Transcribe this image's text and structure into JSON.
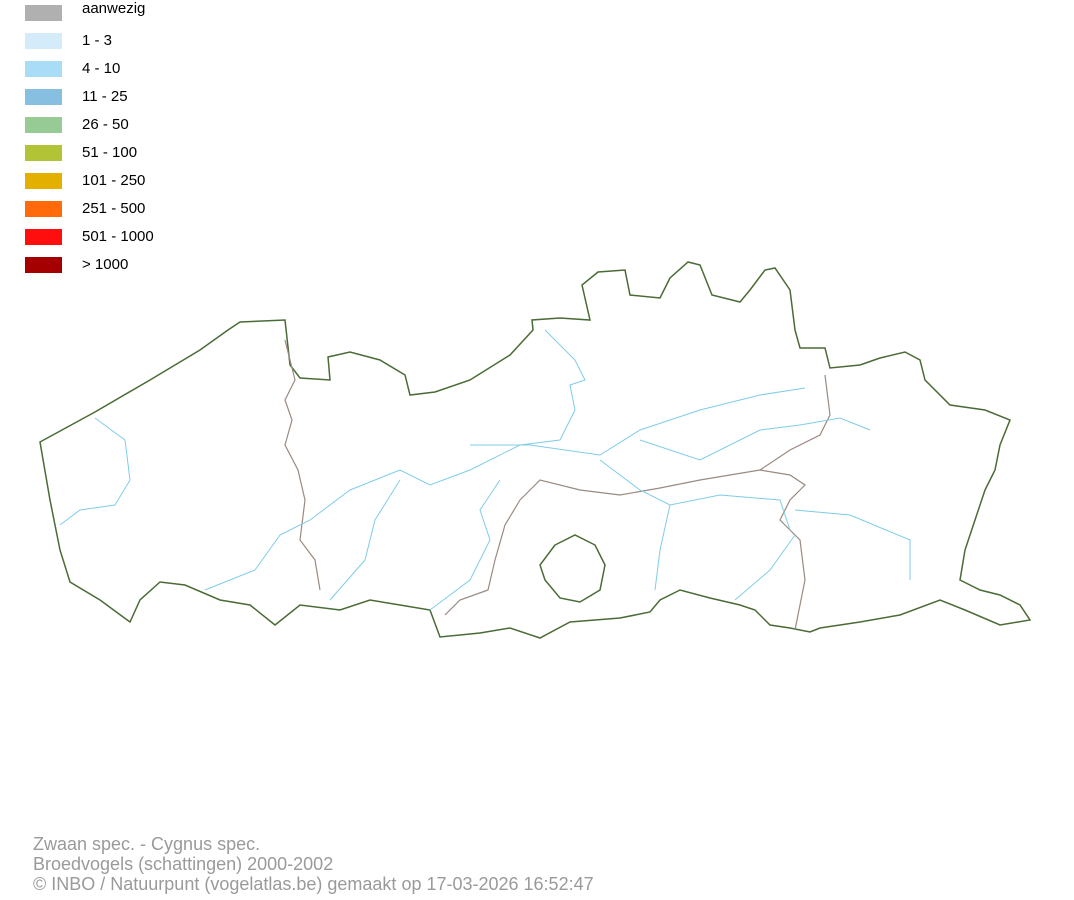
{
  "legend": [
    {
      "label": "aanwezig",
      "color": "#b0b0b0"
    },
    {
      "label": "1 - 3",
      "color": "#d4ebfa"
    },
    {
      "label": "4 - 10",
      "color": "#a9dcf7"
    },
    {
      "label": "11 - 25",
      "color": "#86bfe0"
    },
    {
      "label": "26 - 50",
      "color": "#97cb96"
    },
    {
      "label": "51 - 100",
      "color": "#b2c336"
    },
    {
      "label": "101 - 250",
      "color": "#e3b000"
    },
    {
      "label": "251 - 500",
      "color": "#ff6a0b"
    },
    {
      "label": "501 - 1000",
      "color": "#ff0e0e"
    },
    {
      "label": "> 1000",
      "color": "#a50000"
    }
  ],
  "footer": {
    "species": "Zwaan spec. - Cygnus spec.",
    "dataset": "Broedvogels (schattingen) 2000-2002",
    "credit": "© INBO / Natuurpunt (vogelatlas.be) gemaakt op 17-03-2026 16:52:47"
  }
}
